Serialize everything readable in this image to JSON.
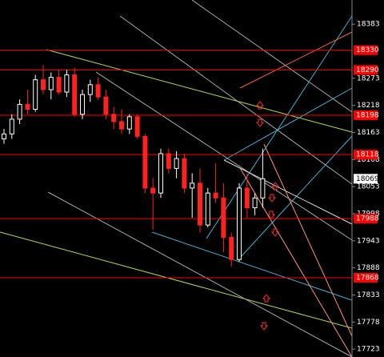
{
  "chart_data": {
    "type": "candlestick",
    "open": [
      18150,
      18160,
      18190,
      18220,
      18210,
      18270,
      18250,
      18275,
      18245,
      18280,
      18200,
      18240,
      18260,
      18235,
      18200,
      18185,
      18170,
      18195,
      18155,
      18050,
      18040,
      18120,
      18090,
      18110,
      18050,
      18060,
      17975,
      18040,
      18030,
      17950,
      17905,
      18050,
      18010,
      18030
    ],
    "high": [
      18170,
      18200,
      18230,
      18250,
      18280,
      18300,
      18285,
      18290,
      18290,
      18295,
      18250,
      18270,
      18275,
      18250,
      18215,
      18210,
      18200,
      18200,
      18160,
      18070,
      18130,
      18130,
      18125,
      18120,
      18080,
      18090,
      18050,
      18100,
      18060,
      17960,
      18060,
      18080,
      18040,
      18130
    ],
    "low": [
      18140,
      18150,
      18180,
      18200,
      18205,
      18240,
      18230,
      18240,
      18235,
      18195,
      18190,
      18225,
      18230,
      18190,
      18170,
      18160,
      18160,
      18150,
      18040,
      17965,
      18030,
      18080,
      18070,
      18040,
      17990,
      17960,
      17970,
      18020,
      17920,
      17890,
      17900,
      17990,
      17995,
      18010
    ],
    "close": [
      18160,
      18190,
      18220,
      18210,
      18270,
      18250,
      18275,
      18245,
      18280,
      18200,
      18240,
      18260,
      18235,
      18200,
      18185,
      18170,
      18195,
      18155,
      18050,
      18040,
      18120,
      18090,
      18110,
      18050,
      18060,
      17975,
      18040,
      18030,
      17950,
      17905,
      18050,
      18010,
      18030,
      18069
    ],
    "up_color": "#ffffff",
    "down_color": "#ff2020",
    "ylim": [
      17707,
      18432
    ],
    "yticks": [
      18383,
      18273,
      18218,
      18163,
      18108,
      18053,
      17998,
      17943,
      17888,
      17833,
      17778,
      17723
    ],
    "levels": [
      18330,
      18290,
      18198,
      18118,
      17988,
      17868
    ],
    "level_color": "#ff0000",
    "current_price": 18069
  }
}
